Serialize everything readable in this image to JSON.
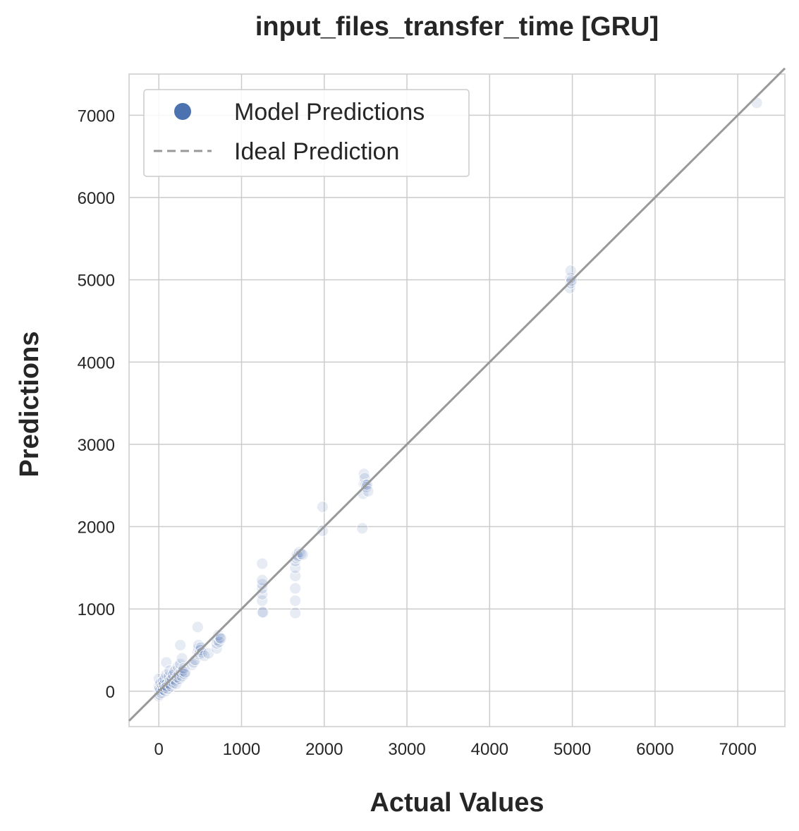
{
  "chart_data": {
    "type": "scatter",
    "title": "input_files_transfer_time [GRU]",
    "xlabel": "Actual Values",
    "ylabel": "Predictions",
    "xlim": [
      -360,
      7570
    ],
    "ylim": [
      -430,
      7500
    ],
    "xticks": [
      0,
      1000,
      2000,
      3000,
      4000,
      5000,
      6000,
      7000
    ],
    "yticks": [
      0,
      1000,
      2000,
      3000,
      4000,
      5000,
      6000,
      7000
    ],
    "grid": true,
    "legend_position": "top-left",
    "legend": [
      {
        "label": "Model Predictions",
        "marker": "circle",
        "color": "#4c72b0"
      },
      {
        "label": "Ideal Prediction",
        "marker": "dashed-line",
        "color": "#999999"
      }
    ],
    "colors": {
      "points": "#4c72b0",
      "ideal_line": "#999999",
      "grid": "#cccccc"
    },
    "series": [
      {
        "name": "Model Predictions",
        "points": [
          [
            0,
            -60
          ],
          [
            0,
            0
          ],
          [
            0,
            20
          ],
          [
            0,
            60
          ],
          [
            0,
            150
          ],
          [
            10,
            -40
          ],
          [
            10,
            30
          ],
          [
            20,
            100
          ],
          [
            20,
            10
          ],
          [
            30,
            -20
          ],
          [
            40,
            60
          ],
          [
            50,
            120
          ],
          [
            50,
            20
          ],
          [
            60,
            80
          ],
          [
            70,
            150
          ],
          [
            80,
            0
          ],
          [
            80,
            40
          ],
          [
            90,
            200
          ],
          [
            90,
            350
          ],
          [
            100,
            100
          ],
          [
            100,
            60
          ],
          [
            110,
            30
          ],
          [
            120,
            180
          ],
          [
            130,
            250
          ],
          [
            130,
            90
          ],
          [
            140,
            130
          ],
          [
            150,
            60
          ],
          [
            160,
            150
          ],
          [
            170,
            200
          ],
          [
            180,
            100
          ],
          [
            190,
            240
          ],
          [
            200,
            130
          ],
          [
            210,
            90
          ],
          [
            220,
            170
          ],
          [
            230,
            300
          ],
          [
            240,
            200
          ],
          [
            250,
            150
          ],
          [
            260,
            330
          ],
          [
            260,
            560
          ],
          [
            270,
            230
          ],
          [
            280,
            400
          ],
          [
            280,
            180
          ],
          [
            290,
            250
          ],
          [
            300,
            280
          ],
          [
            310,
            210
          ],
          [
            320,
            230
          ],
          [
            400,
            320
          ],
          [
            420,
            350
          ],
          [
            440,
            380
          ],
          [
            470,
            780
          ],
          [
            470,
            480
          ],
          [
            480,
            520
          ],
          [
            480,
            560
          ],
          [
            490,
            450
          ],
          [
            500,
            500
          ],
          [
            510,
            530
          ],
          [
            520,
            470
          ],
          [
            550,
            430
          ],
          [
            600,
            460
          ],
          [
            700,
            520
          ],
          [
            700,
            580
          ],
          [
            710,
            620
          ],
          [
            720,
            680
          ],
          [
            730,
            600
          ],
          [
            740,
            650
          ],
          [
            750,
            640
          ],
          [
            1250,
            960
          ],
          [
            1250,
            1100
          ],
          [
            1250,
            1180
          ],
          [
            1250,
            1250
          ],
          [
            1250,
            1300
          ],
          [
            1250,
            1350
          ],
          [
            1250,
            1550
          ],
          [
            1260,
            960
          ],
          [
            1650,
            950
          ],
          [
            1650,
            1100
          ],
          [
            1650,
            1250
          ],
          [
            1650,
            1400
          ],
          [
            1650,
            1500
          ],
          [
            1650,
            1580
          ],
          [
            1660,
            1620
          ],
          [
            1670,
            1660
          ],
          [
            1680,
            1640
          ],
          [
            1700,
            1690
          ],
          [
            1720,
            1670
          ],
          [
            1740,
            1660
          ],
          [
            1980,
            1950
          ],
          [
            1980,
            2240
          ],
          [
            2460,
            1980
          ],
          [
            2470,
            2400
          ],
          [
            2480,
            2520
          ],
          [
            2480,
            2640
          ],
          [
            2490,
            2590
          ],
          [
            2500,
            2510
          ],
          [
            2510,
            2480
          ],
          [
            2520,
            2510
          ],
          [
            2530,
            2430
          ],
          [
            4970,
            4900
          ],
          [
            4980,
            4960
          ],
          [
            4980,
            5020
          ],
          [
            4980,
            5110
          ],
          [
            4990,
            4990
          ],
          [
            7230,
            7150
          ]
        ]
      },
      {
        "name": "Ideal Prediction",
        "line": [
          [
            -360,
            -360
          ],
          [
            7570,
            7570
          ]
        ]
      }
    ]
  }
}
